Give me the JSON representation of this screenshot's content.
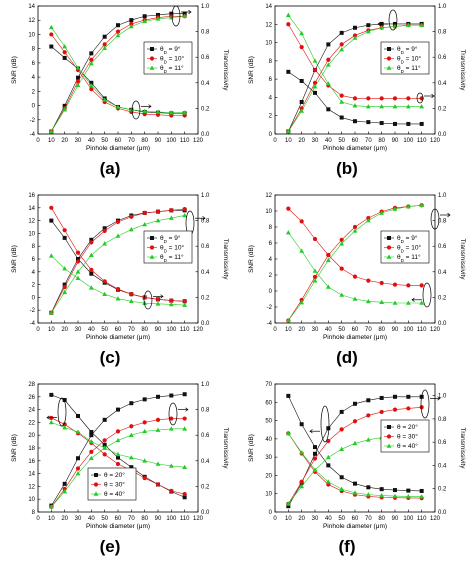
{
  "figure": {
    "title": ""
  },
  "series_colors": {
    "black": "#111111",
    "red": "#e01010",
    "green": "#22cc22"
  },
  "chart_data": [
    {
      "id": "a",
      "type": "line",
      "panel_label": "(a)",
      "title": "",
      "xlabel": "Pinhole diameter (μm)",
      "ylabel": "SNR (dB)",
      "ylabel_right": "Transmissivity",
      "xlim": [
        0,
        120
      ],
      "ylim": [
        -4,
        14
      ],
      "ylim_right": [
        0,
        1.0
      ],
      "xticks": [
        0,
        10,
        20,
        30,
        40,
        50,
        60,
        70,
        80,
        90,
        100,
        110,
        120
      ],
      "yticks": [
        -4,
        -2,
        0,
        2,
        4,
        6,
        8,
        10,
        12,
        14
      ],
      "yticks_right": [
        0,
        0.2,
        0.4,
        0.6,
        0.8,
        1.0
      ],
      "ytick_labels_right": [
        "0.0",
        "0.2",
        "0.4",
        "0.6",
        "0.8",
        "1.0"
      ],
      "x": [
        10,
        20,
        30,
        40,
        50,
        60,
        70,
        80,
        90,
        100,
        110
      ],
      "legend": {
        "position": "right",
        "entries": [
          "θ_D = 9°",
          "θ_D = 10°",
          "θ_D = 11°"
        ]
      },
      "series": [
        {
          "name": "θ_D = 9°",
          "color": "black",
          "marker": "square",
          "axis": "left",
          "values": [
            8.3,
            6.7,
            5.2,
            3.2,
            1.0,
            -0.2,
            -0.6,
            -0.9,
            -1.0,
            -1.1,
            -1.1
          ]
        },
        {
          "name": "θ_D = 9°",
          "color": "black",
          "marker": "square",
          "axis": "right",
          "values": [
            0.02,
            0.22,
            0.44,
            0.63,
            0.76,
            0.85,
            0.89,
            0.92,
            0.93,
            0.94,
            0.94
          ]
        },
        {
          "name": "θ_D = 10°",
          "color": "red",
          "marker": "circle",
          "axis": "left",
          "values": [
            10.0,
            7.5,
            5.0,
            2.3,
            0.5,
            -0.4,
            -0.9,
            -1.2,
            -1.3,
            -1.4,
            -1.4
          ]
        },
        {
          "name": "θ_D = 10°",
          "color": "red",
          "marker": "circle",
          "axis": "right",
          "values": [
            0.02,
            0.2,
            0.41,
            0.58,
            0.7,
            0.8,
            0.86,
            0.89,
            0.91,
            0.92,
            0.92
          ]
        },
        {
          "name": "θ_D = 11°",
          "color": "green",
          "marker": "triangle",
          "axis": "left",
          "values": [
            11.0,
            8.3,
            5.3,
            2.8,
            0.8,
            -0.2,
            -0.6,
            -0.8,
            -0.9,
            -1.0,
            -1.0
          ]
        },
        {
          "name": "θ_D = 11°",
          "color": "green",
          "marker": "triangle",
          "axis": "right",
          "values": [
            0.02,
            0.19,
            0.38,
            0.55,
            0.67,
            0.77,
            0.84,
            0.88,
            0.9,
            0.91,
            0.92
          ]
        }
      ]
    },
    {
      "id": "b",
      "type": "line",
      "panel_label": "(b)",
      "title": "",
      "xlabel": "Pinhole diameter (μm)",
      "ylabel": "SNR (dB)",
      "ylabel_right": "Transmissivity",
      "xlim": [
        0,
        120
      ],
      "ylim": [
        0,
        14
      ],
      "ylim_right": [
        0,
        1.0
      ],
      "xticks": [
        0,
        10,
        20,
        30,
        40,
        50,
        60,
        70,
        80,
        90,
        100,
        110,
        120
      ],
      "yticks": [
        0,
        2,
        4,
        6,
        8,
        10,
        12,
        14
      ],
      "yticks_right": [
        0,
        0.2,
        0.4,
        0.6,
        0.8,
        1.0
      ],
      "ytick_labels_right": [
        "0.0",
        "0.2",
        "0.4",
        "0.6",
        "0.8",
        "1.0"
      ],
      "x": [
        10,
        20,
        30,
        40,
        50,
        60,
        70,
        80,
        90,
        100,
        110
      ],
      "legend": {
        "position": "right",
        "entries": [
          "θ_D = 9°",
          "θ_D = 10°",
          "θ_D = 11°"
        ]
      },
      "series": [
        {
          "name": "θ_D = 9°",
          "color": "black",
          "marker": "square",
          "axis": "left",
          "values": [
            6.8,
            5.8,
            4.5,
            2.7,
            1.8,
            1.4,
            1.3,
            1.2,
            1.1,
            1.1,
            1.1
          ]
        },
        {
          "name": "θ_D = 9°",
          "color": "black",
          "marker": "square",
          "axis": "right",
          "values": [
            0.02,
            0.25,
            0.5,
            0.7,
            0.79,
            0.83,
            0.85,
            0.86,
            0.86,
            0.86,
            0.86
          ]
        },
        {
          "name": "θ_D = 10°",
          "color": "red",
          "marker": "circle",
          "axis": "left",
          "values": [
            12.0,
            9.5,
            7.0,
            5.3,
            4.2,
            3.9,
            3.9,
            3.9,
            3.9,
            3.9,
            3.9
          ]
        },
        {
          "name": "θ_D = 10°",
          "color": "red",
          "marker": "circle",
          "axis": "right",
          "values": [
            0.02,
            0.2,
            0.4,
            0.58,
            0.7,
            0.77,
            0.81,
            0.83,
            0.84,
            0.85,
            0.85
          ]
        },
        {
          "name": "θ_D = 11°",
          "color": "green",
          "marker": "triangle",
          "axis": "left",
          "values": [
            13.0,
            11.0,
            8.0,
            5.5,
            3.5,
            3.1,
            3.0,
            3.0,
            3.0,
            3.0,
            3.0
          ]
        },
        {
          "name": "θ_D = 11°",
          "color": "green",
          "marker": "triangle",
          "axis": "right",
          "values": [
            0.02,
            0.18,
            0.37,
            0.54,
            0.66,
            0.75,
            0.8,
            0.83,
            0.84,
            0.85,
            0.85
          ]
        }
      ]
    },
    {
      "id": "c",
      "type": "line",
      "panel_label": "(c)",
      "title": "",
      "xlabel": "Pinhole diameter (μm)",
      "ylabel": "SNR (dB)",
      "ylabel_right": "Transmissivity",
      "xlim": [
        0,
        120
      ],
      "ylim": [
        -4,
        16
      ],
      "ylim_right": [
        0,
        1.0
      ],
      "xticks": [
        0,
        10,
        20,
        30,
        40,
        50,
        60,
        70,
        80,
        90,
        100,
        110,
        120
      ],
      "yticks": [
        -4,
        -2,
        0,
        2,
        4,
        6,
        8,
        10,
        12,
        14,
        16
      ],
      "yticks_right": [
        0,
        0.2,
        0.4,
        0.6,
        0.8,
        1.0
      ],
      "ytick_labels_right": [
        "0.0",
        "0.2",
        "0.4",
        "0.6",
        "0.8",
        "1.0"
      ],
      "x": [
        10,
        20,
        30,
        40,
        50,
        60,
        70,
        80,
        90,
        100,
        110
      ],
      "legend": {
        "position": "right",
        "entries": [
          "θ_D = 9°",
          "θ_D = 10°",
          "θ_D = 11°"
        ]
      },
      "series": [
        {
          "name": "θ_D = 9°",
          "color": "black",
          "marker": "square",
          "axis": "left",
          "values": [
            12.0,
            9.3,
            6.0,
            3.7,
            2.3,
            1.2,
            0.5,
            0.0,
            -0.3,
            -0.5,
            -0.6
          ]
        },
        {
          "name": "θ_D = 9°",
          "color": "black",
          "marker": "square",
          "axis": "right",
          "values": [
            0.08,
            0.3,
            0.5,
            0.65,
            0.74,
            0.8,
            0.84,
            0.86,
            0.87,
            0.88,
            0.88
          ]
        },
        {
          "name": "θ_D = 10°",
          "color": "red",
          "marker": "circle",
          "axis": "left",
          "values": [
            14.0,
            10.5,
            7.0,
            4.3,
            2.5,
            1.3,
            0.5,
            0.0,
            -0.3,
            -0.5,
            -0.6
          ]
        },
        {
          "name": "θ_D = 10°",
          "color": "red",
          "marker": "circle",
          "axis": "right",
          "values": [
            0.08,
            0.28,
            0.48,
            0.63,
            0.72,
            0.79,
            0.83,
            0.86,
            0.87,
            0.88,
            0.89
          ]
        },
        {
          "name": "θ_D = 11°",
          "color": "green",
          "marker": "triangle",
          "axis": "left",
          "values": [
            6.5,
            4.5,
            3.0,
            1.5,
            0.5,
            -0.2,
            -0.6,
            -0.9,
            -1.0,
            -1.1,
            -1.2
          ]
        },
        {
          "name": "θ_D = 11°",
          "color": "green",
          "marker": "triangle",
          "axis": "right",
          "values": [
            0.08,
            0.24,
            0.4,
            0.53,
            0.62,
            0.68,
            0.73,
            0.77,
            0.8,
            0.82,
            0.84
          ]
        }
      ]
    },
    {
      "id": "d",
      "type": "line",
      "panel_label": "(d)",
      "title": "",
      "xlabel": "Pinhole diameter (μm)",
      "ylabel": "SNR (dB)",
      "ylabel_right": "Transmissivity",
      "xlim": [
        0,
        120
      ],
      "ylim": [
        -4,
        12
      ],
      "ylim_right": [
        0,
        1.0
      ],
      "xticks": [
        0,
        10,
        20,
        30,
        40,
        50,
        60,
        70,
        80,
        90,
        100,
        110,
        120
      ],
      "yticks": [
        -4,
        -2,
        0,
        2,
        4,
        6,
        8,
        10,
        12
      ],
      "yticks_right": [
        0,
        0.2,
        0.4,
        0.6,
        0.8,
        1.0
      ],
      "ytick_labels_right": [
        "0.0",
        "0.2",
        "0.4",
        "0.6",
        "0.8",
        "1.0"
      ],
      "x": [
        10,
        20,
        30,
        40,
        50,
        60,
        70,
        80,
        90,
        100,
        110
      ],
      "legend": {
        "position": "right",
        "entries": [
          "θ_D = 9°",
          "θ_D = 10°",
          "θ_D = 11°"
        ]
      },
      "series": [
        {
          "name": "θ_D = 10°",
          "color": "red",
          "marker": "circle",
          "axis": "left",
          "values": [
            10.3,
            8.7,
            6.5,
            4.5,
            2.8,
            1.8,
            1.3,
            1.0,
            0.8,
            0.7,
            0.7
          ]
        },
        {
          "name": "θ_D = 10°",
          "color": "red",
          "marker": "circle",
          "axis": "right",
          "values": [
            0.02,
            0.18,
            0.36,
            0.53,
            0.65,
            0.75,
            0.82,
            0.87,
            0.9,
            0.91,
            0.92
          ]
        },
        {
          "name": "θ_D = 11°",
          "color": "green",
          "marker": "triangle",
          "axis": "left",
          "values": [
            7.3,
            5.0,
            2.5,
            0.5,
            -0.5,
            -1.0,
            -1.3,
            -1.4,
            -1.5,
            -1.5,
            -1.5
          ]
        },
        {
          "name": "θ_D = 11°",
          "color": "green",
          "marker": "triangle",
          "axis": "right",
          "values": [
            0.02,
            0.16,
            0.33,
            0.49,
            0.62,
            0.72,
            0.8,
            0.86,
            0.89,
            0.91,
            0.92
          ]
        }
      ]
    },
    {
      "id": "e",
      "type": "line",
      "panel_label": "(e)",
      "title": "",
      "xlabel": "Pinhole diameter (μm)",
      "ylabel": "SNR (dB)",
      "ylabel_right": "Transmissivity",
      "xlim": [
        0,
        120
      ],
      "ylim": [
        8,
        28
      ],
      "ylim_right": [
        0,
        1.0
      ],
      "xticks": [
        0,
        10,
        20,
        30,
        40,
        50,
        60,
        70,
        80,
        90,
        100,
        110,
        120
      ],
      "yticks": [
        8,
        10,
        12,
        14,
        16,
        18,
        20,
        22,
        24,
        26,
        28
      ],
      "yticks_right": [
        0,
        0.2,
        0.4,
        0.6,
        0.8,
        1.0
      ],
      "ytick_labels_right": [
        "0.0",
        "0.2",
        "0.4",
        "0.6",
        "0.8",
        "1.0"
      ],
      "x": [
        10,
        20,
        30,
        40,
        50,
        60,
        70,
        80,
        90,
        100,
        110
      ],
      "legend": {
        "position": "bottom-left",
        "entries": [
          "θ = 20°",
          "θ = 30°",
          "θ = 40°"
        ]
      },
      "series": [
        {
          "name": "θ = 20°",
          "color": "black",
          "marker": "square",
          "axis": "left",
          "values": [
            26.3,
            25.5,
            23.0,
            20.5,
            18.5,
            16.5,
            15.0,
            13.5,
            12.3,
            11.2,
            10.3
          ]
        },
        {
          "name": "θ = 20°",
          "color": "black",
          "marker": "square",
          "axis": "right",
          "values": [
            0.05,
            0.22,
            0.42,
            0.6,
            0.72,
            0.8,
            0.85,
            0.88,
            0.9,
            0.91,
            0.92
          ]
        },
        {
          "name": "θ = 30°",
          "color": "red",
          "marker": "circle",
          "axis": "left",
          "values": [
            22.7,
            21.7,
            20.3,
            18.8,
            17.0,
            15.5,
            14.5,
            13.3,
            12.3,
            11.3,
            10.8
          ]
        },
        {
          "name": "θ = 30°",
          "color": "red",
          "marker": "circle",
          "axis": "right",
          "values": [
            0.04,
            0.18,
            0.34,
            0.47,
            0.56,
            0.63,
            0.67,
            0.7,
            0.72,
            0.73,
            0.73
          ]
        },
        {
          "name": "θ = 40°",
          "color": "green",
          "marker": "triangle",
          "axis": "left",
          "values": [
            22.0,
            21.2,
            20.5,
            19.0,
            18.0,
            17.0,
            16.5,
            16.0,
            15.5,
            15.2,
            15.0
          ]
        },
        {
          "name": "θ = 40°",
          "color": "green",
          "marker": "triangle",
          "axis": "right",
          "values": [
            0.04,
            0.16,
            0.3,
            0.42,
            0.5,
            0.56,
            0.6,
            0.63,
            0.64,
            0.65,
            0.65
          ]
        }
      ]
    },
    {
      "id": "f",
      "type": "line",
      "panel_label": "(f)",
      "title": "",
      "xlabel": "Pinhole diameter (μm)",
      "ylabel": "SNR (dB)",
      "ylabel_right": "Transmissivity",
      "xlim": [
        0,
        120
      ],
      "ylim": [
        0,
        70
      ],
      "ylim_right": [
        0,
        1.1
      ],
      "xticks": [
        0,
        10,
        20,
        30,
        40,
        50,
        60,
        70,
        80,
        90,
        100,
        110,
        120
      ],
      "yticks": [
        0,
        10,
        20,
        30,
        40,
        50,
        60,
        70
      ],
      "yticks_right": [
        0,
        0.2,
        0.4,
        0.6,
        0.8,
        1.0
      ],
      "ytick_labels_right": [
        "0.0",
        "0.2",
        "0.4",
        "0.6",
        "0.8",
        "1.0"
      ],
      "x": [
        10,
        20,
        30,
        40,
        50,
        60,
        70,
        80,
        90,
        100,
        110
      ],
      "legend": {
        "position": "right",
        "entries": [
          "θ = 20°",
          "θ = 30°",
          "θ = 40°"
        ]
      },
      "series": [
        {
          "name": "θ = 20°",
          "color": "black",
          "marker": "square",
          "axis": "left",
          "values": [
            63.5,
            48.0,
            35.5,
            25.5,
            19.0,
            15.5,
            13.5,
            12.5,
            12.0,
            11.7,
            11.5
          ]
        },
        {
          "name": "θ = 20°",
          "color": "black",
          "marker": "square",
          "axis": "right",
          "values": [
            0.05,
            0.25,
            0.5,
            0.72,
            0.86,
            0.93,
            0.96,
            0.98,
            0.99,
            0.99,
            0.99
          ]
        },
        {
          "name": "θ = 30°",
          "color": "red",
          "marker": "circle",
          "axis": "left",
          "values": [
            43.0,
            32.0,
            22.0,
            15.0,
            11.5,
            9.5,
            8.5,
            8.0,
            7.8,
            7.7,
            7.6
          ]
        },
        {
          "name": "θ = 30°",
          "color": "red",
          "marker": "circle",
          "axis": "right",
          "values": [
            0.07,
            0.26,
            0.46,
            0.61,
            0.71,
            0.78,
            0.83,
            0.86,
            0.88,
            0.89,
            0.9
          ]
        },
        {
          "name": "θ = 40°",
          "color": "green",
          "marker": "triangle",
          "axis": "left",
          "values": [
            43.0,
            32.5,
            23.0,
            16.5,
            12.5,
            10.5,
            9.5,
            9.0,
            8.7,
            8.5,
            8.4
          ]
        },
        {
          "name": "θ = 40°",
          "color": "green",
          "marker": "triangle",
          "axis": "right",
          "values": [
            0.07,
            0.22,
            0.36,
            0.47,
            0.54,
            0.59,
            0.62,
            0.64,
            0.66,
            0.67,
            0.68
          ]
        }
      ]
    }
  ]
}
